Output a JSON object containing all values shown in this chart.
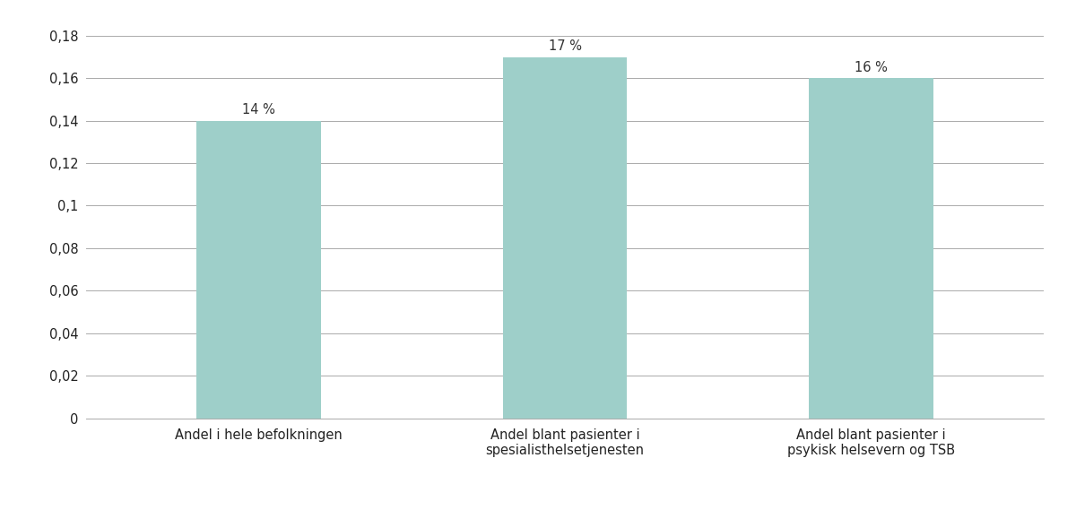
{
  "categories": [
    "Andel i hele befolkningen",
    "Andel blant pasienter i\nspesialisthelsetjenesten",
    "Andel blant pasienter i\npsykisk helsevern og TSB"
  ],
  "values": [
    0.14,
    0.17,
    0.16
  ],
  "labels": [
    "14 %",
    "17 %",
    "16 %"
  ],
  "bar_color": "#9ECFC9",
  "bar_width": 0.13,
  "ylim": [
    0,
    0.18
  ],
  "yticks": [
    0,
    0.02,
    0.04,
    0.06,
    0.08,
    0.1,
    0.12,
    0.14,
    0.16,
    0.18
  ],
  "ytick_labels": [
    "0",
    "0,02",
    "0,04",
    "0,06",
    "0,08",
    "0,1",
    "0,12",
    "0,14",
    "0,16",
    "0,18"
  ],
  "grid_color": "#aaaaaa",
  "grid_linewidth": 0.7,
  "background_color": "#ffffff",
  "label_fontsize": 10.5,
  "tick_fontsize": 10.5,
  "annotation_fontsize": 10.5,
  "x_positions": [
    0.18,
    0.5,
    0.82
  ]
}
